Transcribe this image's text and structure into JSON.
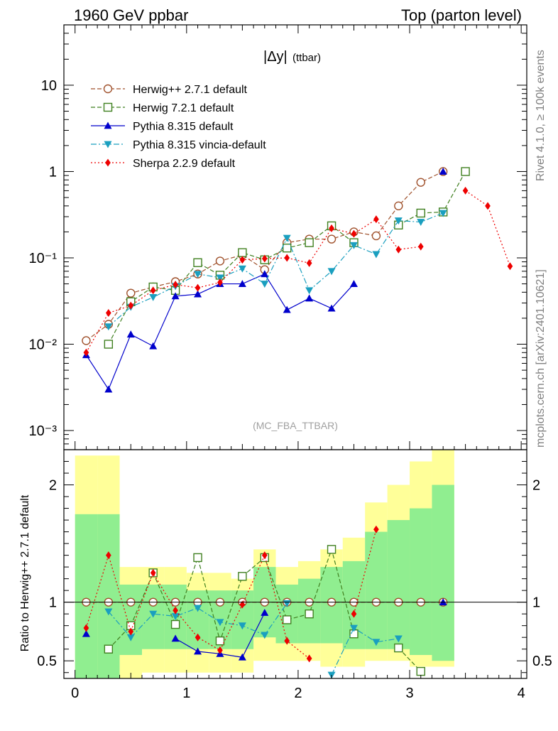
{
  "header": {
    "left": "1960 GeV ppbar",
    "right": "Top (parton level)"
  },
  "side_labels": {
    "rivet": "Rivet 4.1.0, ≥ 100k events",
    "mcplots": "mcplots.cern.ch [arXiv:2401.10621]"
  },
  "watermark": "(MC_FBA_TTBAR)",
  "chart_data": {
    "type": "line",
    "title": "|Δy|",
    "title_sub": "(ttbar)",
    "xlim": [
      -0.1,
      4.05
    ],
    "top_ylim": [
      0.0006,
      50
    ],
    "top_yscale": "log",
    "bottom_ylim": [
      0.35,
      2.3
    ],
    "ratio_ylabel": "Ratio to Herwig++ 2.7.1 default",
    "x_ticks": [
      0,
      1,
      2,
      3,
      4
    ],
    "x_tick_labels": [
      "0",
      "1",
      "2",
      "3",
      "4"
    ],
    "top_y_ticks": [
      0.001,
      0.01,
      0.1,
      1,
      10
    ],
    "top_y_tick_labels": [
      "10⁻³",
      "10⁻²",
      "10⁻¹",
      "1",
      "10"
    ],
    "bottom_y_ticks": [
      0.5,
      1,
      2
    ],
    "bottom_y_tick_labels": [
      "0.5",
      "1",
      "2"
    ],
    "bins": [
      0.1,
      0.3,
      0.5,
      0.7,
      0.9,
      1.1,
      1.3,
      1.5,
      1.7,
      1.9,
      2.1,
      2.3,
      2.5,
      2.7,
      2.9,
      3.1,
      3.3,
      3.5,
      3.7,
      3.9
    ],
    "band_yellow": [
      [
        0.35,
        2.25
      ],
      [
        0.35,
        2.25
      ],
      [
        0.35,
        1.3
      ],
      [
        0.4,
        1.3
      ],
      [
        0.4,
        1.3
      ],
      [
        0.4,
        1.25
      ],
      [
        0.4,
        1.25
      ],
      [
        0.4,
        1.2
      ],
      [
        0.5,
        1.45
      ],
      [
        0.5,
        1.3
      ],
      [
        0.5,
        1.35
      ],
      [
        0.45,
        1.45
      ],
      [
        0.45,
        1.55
      ],
      [
        0.5,
        1.85
      ],
      [
        0.5,
        2.0
      ],
      [
        0.45,
        2.2
      ],
      [
        0.45,
        2.3
      ]
    ],
    "band_green": [
      [
        0.35,
        1.75
      ],
      [
        0.35,
        1.75
      ],
      [
        0.55,
        1.15
      ],
      [
        0.6,
        1.15
      ],
      [
        0.6,
        1.15
      ],
      [
        0.6,
        1.1
      ],
      [
        0.6,
        1.1
      ],
      [
        0.6,
        1.1
      ],
      [
        0.7,
        1.3
      ],
      [
        0.65,
        1.15
      ],
      [
        0.65,
        1.2
      ],
      [
        0.65,
        1.3
      ],
      [
        0.6,
        1.35
      ],
      [
        0.6,
        1.6
      ],
      [
        0.6,
        1.7
      ],
      [
        0.55,
        1.8
      ],
      [
        0.5,
        2.0
      ]
    ],
    "series": [
      {
        "name": "Herwig++ 2.7.1 default",
        "color": "#a0522d",
        "dash": "6,3",
        "marker": "circle-open",
        "values": [
          0.011,
          0.017,
          0.039,
          0.046,
          0.053,
          0.065,
          0.092,
          0.108,
          0.073,
          0.15,
          0.165,
          0.165,
          0.2,
          0.18,
          0.4,
          0.75,
          1.0,
          null,
          null,
          null
        ],
        "ratio": [
          1,
          1,
          1,
          1,
          1,
          1,
          1,
          1,
          1,
          1,
          1,
          1,
          1,
          1,
          1,
          1,
          1,
          null,
          null,
          null
        ]
      },
      {
        "name": "Herwig 7.2.1 default",
        "color": "#408020",
        "dash": "6,3",
        "marker": "square-open",
        "values": [
          null,
          0.01,
          0.031,
          0.046,
          0.042,
          0.088,
          0.063,
          0.115,
          0.095,
          0.13,
          0.15,
          0.235,
          0.15,
          null,
          0.24,
          0.33,
          0.34,
          1.0,
          null,
          null
        ],
        "ratio": [
          null,
          0.6,
          0.8,
          1.25,
          0.81,
          1.38,
          0.67,
          1.22,
          1.38,
          0.85,
          0.9,
          1.45,
          0.73,
          null,
          0.61,
          0.41,
          null,
          null,
          null,
          null
        ]
      },
      {
        "name": "Pythia 8.315 default",
        "color": "#0000cc",
        "dash": "",
        "marker": "triangle-up",
        "values": [
          0.0075,
          0.003,
          0.013,
          0.0095,
          0.036,
          0.038,
          0.05,
          0.05,
          0.065,
          0.025,
          0.034,
          0.026,
          0.05,
          null,
          null,
          null,
          1.0,
          null,
          null,
          null
        ],
        "ratio": [
          0.73,
          null,
          null,
          null,
          0.69,
          0.58,
          0.56,
          0.53,
          0.91,
          null,
          null,
          null,
          null,
          null,
          null,
          null,
          1.0,
          null,
          null,
          null
        ]
      },
      {
        "name": "Pythia 8.315 vincia-default",
        "color": "#1a9fbf",
        "dash": "8,3,2,3",
        "marker": "triangle-down",
        "values": [
          null,
          0.016,
          0.027,
          0.035,
          0.047,
          0.065,
          0.059,
          0.075,
          0.05,
          0.17,
          0.042,
          0.07,
          0.14,
          0.11,
          0.27,
          0.26,
          0.33,
          null,
          null,
          null
        ],
        "ratio": [
          null,
          0.92,
          0.7,
          0.9,
          0.88,
          0.95,
          0.83,
          0.8,
          0.72,
          0.99,
          null,
          0.38,
          0.78,
          0.66,
          0.69,
          null,
          null,
          null,
          null,
          null
        ]
      },
      {
        "name": "Sherpa 2.2.9 default",
        "color": "#ee0000",
        "dash": "2,3",
        "marker": "diamond",
        "values": [
          0.008,
          0.023,
          0.028,
          0.042,
          0.049,
          0.045,
          0.052,
          0.095,
          0.098,
          0.1,
          0.087,
          0.22,
          0.19,
          0.28,
          0.125,
          0.135,
          null,
          0.6,
          0.4,
          0.08
        ],
        "ratio": [
          0.78,
          1.4,
          0.75,
          1.25,
          0.93,
          0.7,
          0.59,
          0.98,
          1.4,
          0.67,
          0.52,
          null,
          0.9,
          1.62,
          null,
          null,
          null,
          null,
          null,
          null
        ]
      }
    ]
  }
}
